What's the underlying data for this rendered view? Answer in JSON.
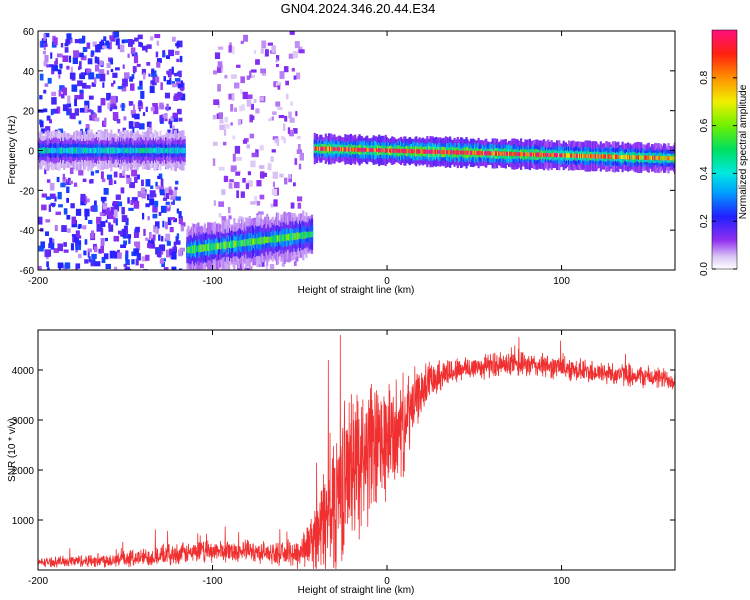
{
  "title": "GN04.2024.346.20.44.E34",
  "chart_data": [
    {
      "type": "heatmap",
      "xlabel": "Height of straight line (km)",
      "ylabel": "Frequency (Hz)",
      "xlim": [
        -200,
        165
      ],
      "ylim": [
        -60,
        60
      ],
      "x_ticks": [
        -200,
        -100,
        0,
        100
      ],
      "y_ticks": [
        -60,
        -40,
        -20,
        0,
        20,
        40,
        60
      ],
      "colorbar": {
        "label": "Normalized spectral amplitude",
        "range": [
          0,
          1
        ],
        "ticks": [
          0.0,
          0.2,
          0.4,
          0.6,
          0.8
        ]
      },
      "bands": [
        {
          "x": [
            -200,
            -116
          ],
          "freq": 0,
          "halfwidth": 4,
          "peak": 0.42
        },
        {
          "x": [
            -115,
            -43
          ],
          "freq": -50,
          "halfwidth": 5,
          "peak": 0.55,
          "slope": 8
        },
        {
          "x": [
            -42,
            165
          ],
          "freq": 1,
          "halfwidth": 3,
          "peak": 0.85,
          "slope": -5
        }
      ],
      "noise_regions": [
        {
          "x": [
            -200,
            -118
          ],
          "level": 0.22
        },
        {
          "x": [
            -100,
            -50
          ],
          "level": 0.12
        }
      ]
    },
    {
      "type": "line",
      "xlabel": "Height of straight line (km)",
      "ylabel": "SNR (10 * v/v)",
      "xlim": [
        -200,
        165
      ],
      "ylim": [
        0,
        4800
      ],
      "x_ticks": [
        -200,
        -100,
        0,
        100
      ],
      "y_ticks": [
        1000,
        2000,
        3000,
        4000
      ],
      "series": [
        {
          "color": "#f03030",
          "envelope": [
            [
              -200,
              150
            ],
            [
              -180,
              180
            ],
            [
              -160,
              200
            ],
            [
              -140,
              250
            ],
            [
              -120,
              320
            ],
            [
              -100,
              380
            ],
            [
              -80,
              380
            ],
            [
              -60,
              320
            ],
            [
              -50,
              350
            ],
            [
              -40,
              700
            ],
            [
              -35,
              1000
            ],
            [
              -30,
              1400
            ],
            [
              -25,
              1800
            ],
            [
              -20,
              2100
            ],
            [
              -15,
              2300
            ],
            [
              -10,
              2350
            ],
            [
              -5,
              2450
            ],
            [
              0,
              2600
            ],
            [
              5,
              2700
            ],
            [
              10,
              2900
            ],
            [
              15,
              3300
            ],
            [
              20,
              3600
            ],
            [
              25,
              3850
            ],
            [
              30,
              3900
            ],
            [
              40,
              4000
            ],
            [
              60,
              4100
            ],
            [
              80,
              4100
            ],
            [
              100,
              4050
            ],
            [
              120,
              3950
            ],
            [
              140,
              3900
            ],
            [
              165,
              3800
            ]
          ],
          "spread": [
            [
              -200,
              100
            ],
            [
              -120,
              250
            ],
            [
              -60,
              250
            ],
            [
              -45,
              500
            ],
            [
              -30,
              1800
            ],
            [
              -10,
              1700
            ],
            [
              10,
              1100
            ],
            [
              20,
              500
            ],
            [
              40,
              300
            ],
            [
              165,
              250
            ]
          ]
        }
      ]
    }
  ]
}
